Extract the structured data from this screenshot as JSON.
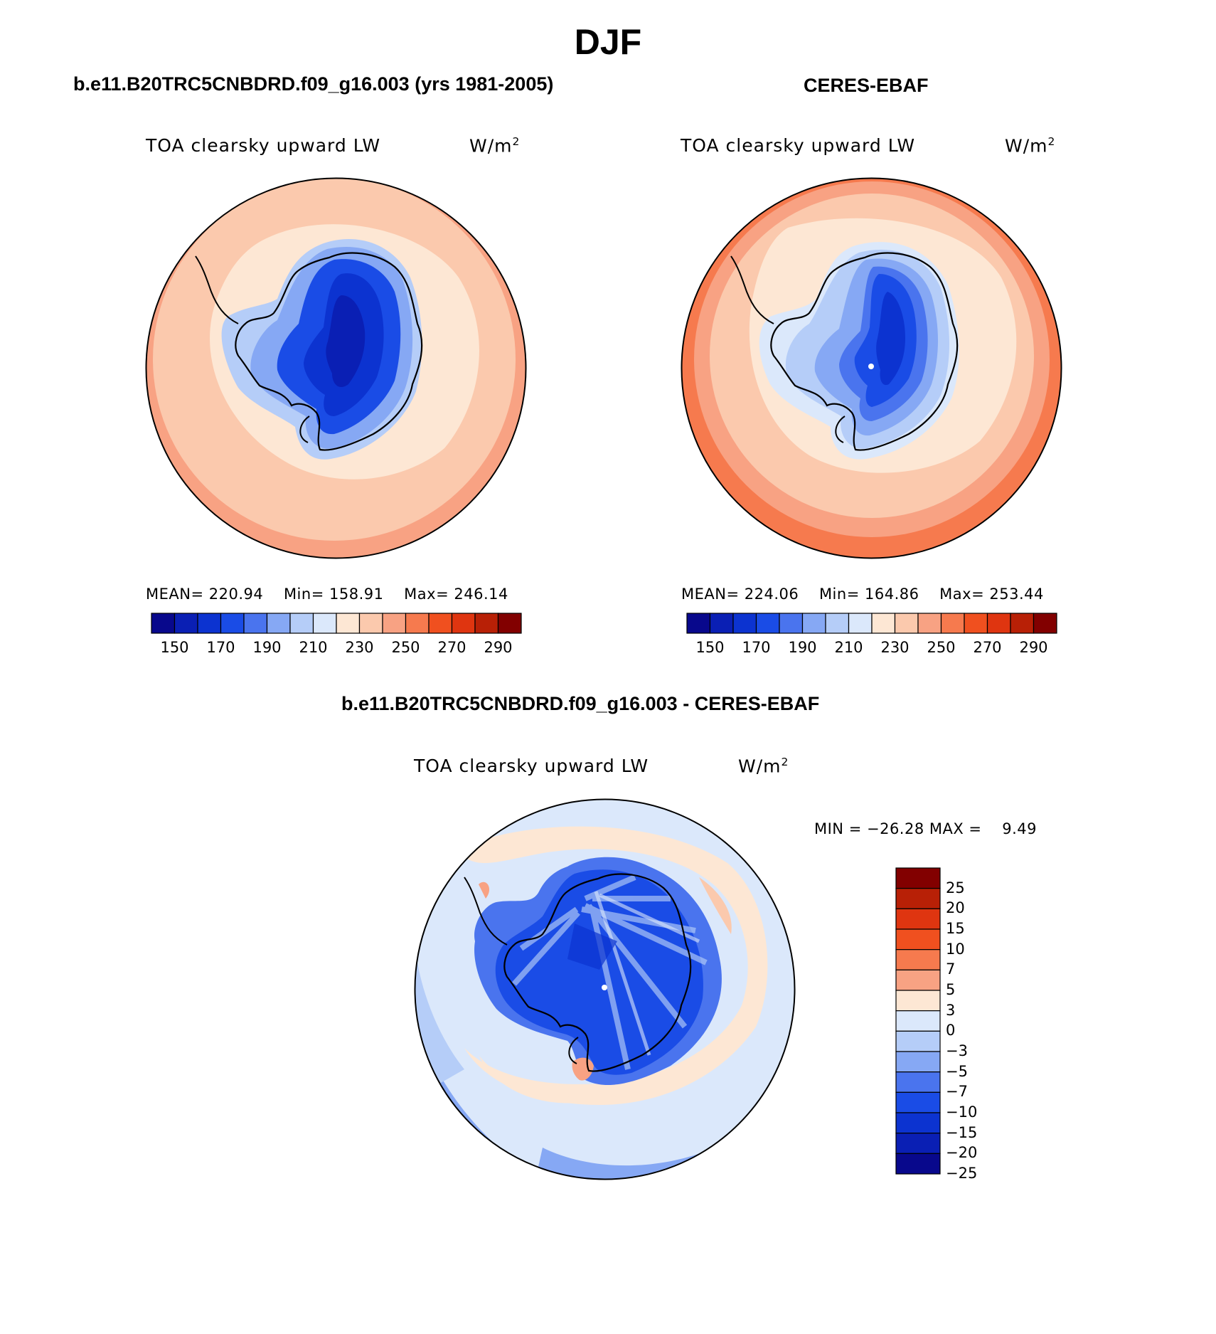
{
  "figure": {
    "title": "DJF"
  },
  "panels": [
    {
      "id": "model",
      "title": "b.e11.B20TRC5CNBDRD.f09_g16.003 (yrs 1981-2005)",
      "variable": "TOA clearsky upward LW",
      "units_base": "W/m",
      "units_exp": "2",
      "stats": {
        "mean_label": "MEAN=",
        "mean": "220.94",
        "min_label": "Min=",
        "min": "158.91",
        "max_label": "Max=",
        "max": "246.14"
      }
    },
    {
      "id": "obs",
      "title": "CERES-EBAF",
      "variable": "TOA clearsky upward LW",
      "units_base": "W/m",
      "units_exp": "2",
      "stats": {
        "mean_label": "MEAN=",
        "mean": "224.06",
        "min_label": "Min=",
        "min": "164.86",
        "max_label": "Max=",
        "max": "253.44"
      }
    },
    {
      "id": "diff",
      "title": "b.e11.B20TRC5CNBDRD.f09_g16.003 - CERES-EBAF",
      "variable": "TOA clearsky upward LW",
      "units_base": "W/m",
      "units_exp": "2",
      "stats": {
        "min_label": "MIN =",
        "min": "−26.28",
        "max_label": "MAX =",
        "max": "9.49"
      }
    }
  ],
  "colorbars": {
    "absolute": {
      "colors": [
        "#08088c",
        "#0a1fb4",
        "#0c33d0",
        "#1a4ce6",
        "#4a74ee",
        "#86a8f4",
        "#b5cdf8",
        "#dbe8fb",
        "#fde7d4",
        "#fbc9ad",
        "#f8a283",
        "#f67a4e",
        "#f0501f",
        "#df3510",
        "#b82006",
        "#820000"
      ],
      "tick_labels": [
        "150",
        "170",
        "190",
        "210",
        "230",
        "250",
        "270",
        "290"
      ]
    },
    "difference": {
      "colors": [
        "#820000",
        "#b82006",
        "#df3510",
        "#f0501f",
        "#f67a4e",
        "#f8a283",
        "#fde7d4",
        "#dbe8fb",
        "#b5cdf8",
        "#86a8f4",
        "#4a74ee",
        "#1a4ce6",
        "#0c33d0",
        "#0a1fb4",
        "#08088c"
      ],
      "tick_labels": [
        "25",
        "20",
        "15",
        "10",
        "7",
        "5",
        "3",
        "0",
        "−3",
        "−5",
        "−7",
        "−10",
        "−15",
        "−20",
        "−25"
      ]
    }
  }
}
